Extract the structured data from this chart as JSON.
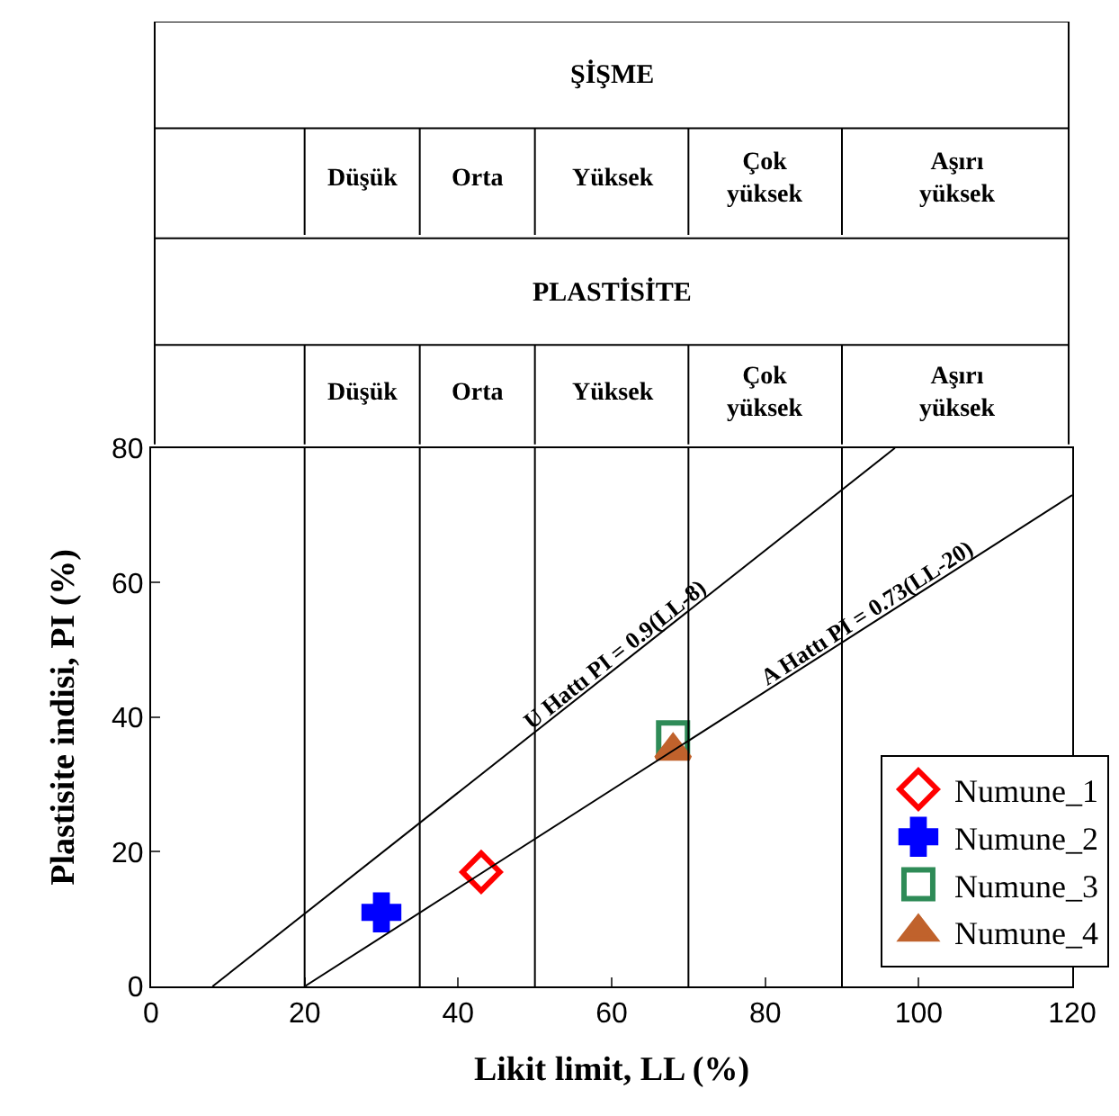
{
  "chart_data": {
    "type": "scatter",
    "xlabel": "Likit limit, LL (%)",
    "ylabel": "Plastisite indisi, PI (%)",
    "xlim": [
      0,
      120
    ],
    "xticks": [
      0,
      20,
      40,
      60,
      80,
      100,
      120
    ],
    "ylim": [
      0,
      80
    ],
    "yticks": [
      0,
      20,
      40,
      60,
      80
    ],
    "grid": false,
    "legend": "bottom right",
    "series": [
      {
        "name": "Numune_1",
        "color": "#ff0000",
        "marker": "diamond-open",
        "x": [
          43
        ],
        "values": [
          17
        ]
      },
      {
        "name": "Numune_2",
        "color": "#0000ff",
        "marker": "cross",
        "x": [
          30
        ],
        "values": [
          11
        ]
      },
      {
        "name": "Numune_3",
        "color": "#2e8b57",
        "marker": "square-open",
        "x": [
          68
        ],
        "values": [
          37
        ]
      },
      {
        "name": "Numune_4",
        "color": "#c0622c",
        "marker": "triangle",
        "x": [
          68
        ],
        "values": [
          35
        ]
      },
      {
        "name": "U Hattı PI = 0.9(LL-8)",
        "type": "line",
        "color": "#000000",
        "marker": "none",
        "x": [
          8,
          96.9
        ],
        "values": [
          0,
          80
        ]
      },
      {
        "name": "A Hattı PI = 0.73(LL-20)",
        "type": "line",
        "color": "#000000",
        "marker": "none",
        "x": [
          20,
          120
        ],
        "values": [
          0,
          73
        ]
      }
    ],
    "ref_lines": [
      {
        "axis": "x",
        "value": 20,
        "color": "#000000"
      },
      {
        "axis": "x",
        "value": 35,
        "color": "#000000"
      },
      {
        "axis": "x",
        "value": 50,
        "color": "#000000"
      },
      {
        "axis": "x",
        "value": 70,
        "color": "#000000"
      },
      {
        "axis": "x",
        "value": 90,
        "color": "#000000"
      }
    ],
    "annotations": [
      "ŞİŞME",
      "Düşük",
      "Orta",
      "Yüksek",
      "Çok\nyüksek",
      "Aşırı\nyüksek",
      "PLASTİSİTE",
      "Düşük",
      "Orta",
      "Yüksek",
      "Çok\nyüksek",
      "Aşırı\nyüksek"
    ]
  }
}
